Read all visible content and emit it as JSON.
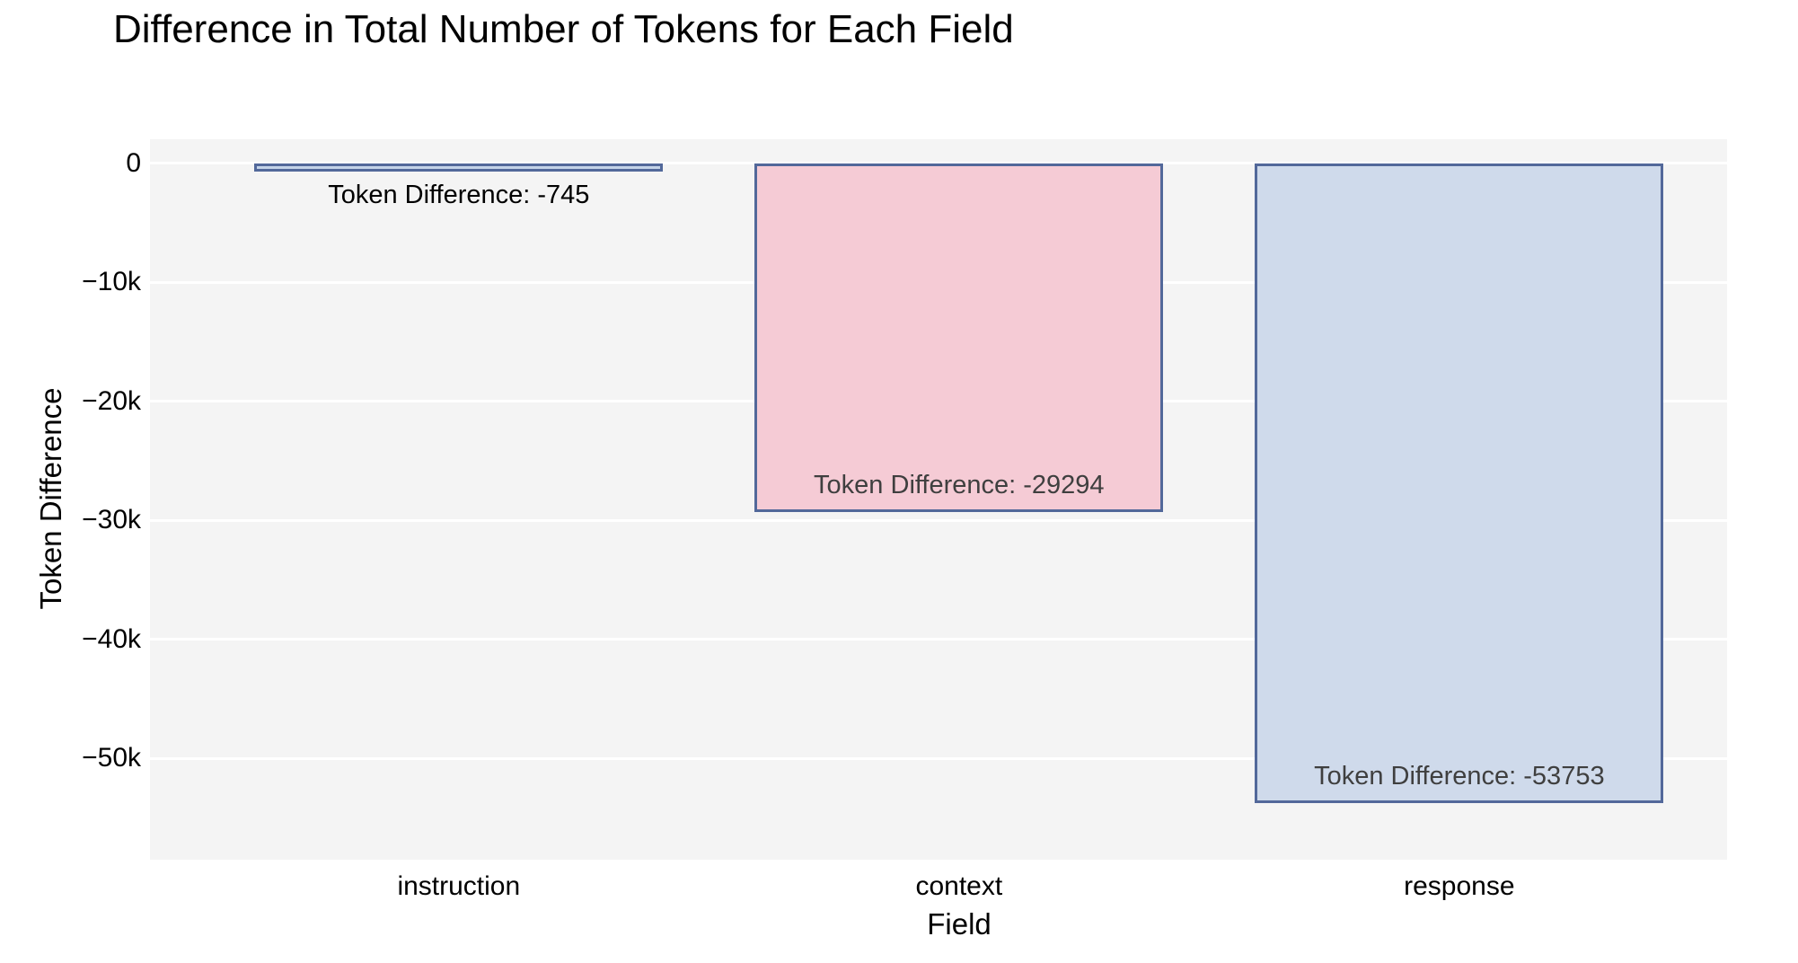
{
  "chart_data": {
    "type": "bar",
    "title": "Difference in Total Number of Tokens for Each Field",
    "xlabel": "Field",
    "ylabel": "Token Difference",
    "categories": [
      "instruction",
      "context",
      "response"
    ],
    "values": [
      -745,
      -29294,
      -53753
    ],
    "bar_labels": [
      "Token Difference: -745",
      "Token Difference: -29294",
      "Token Difference: -53753"
    ],
    "bar_label_positions": [
      "outside-below",
      "inside-bottom",
      "inside-bottom"
    ],
    "bar_fill_colors": [
      "#c4d3e8",
      "#f5cbd5",
      "#cfdaeb"
    ],
    "bar_border_color": "#52689a",
    "ylim": [
      -58500,
      2000
    ],
    "yticks": [
      0,
      -10000,
      -20000,
      -30000,
      -40000,
      -50000
    ],
    "ytick_labels": [
      "0",
      "−10k",
      "−20k",
      "−30k",
      "−40k",
      "−50k"
    ],
    "grid": true,
    "legend": "none",
    "plot_bg_color": "#f4f4f4",
    "grid_color": "#ffffff",
    "outside_label_color": "#000000",
    "inside_label_color": "#3f3f3f"
  }
}
